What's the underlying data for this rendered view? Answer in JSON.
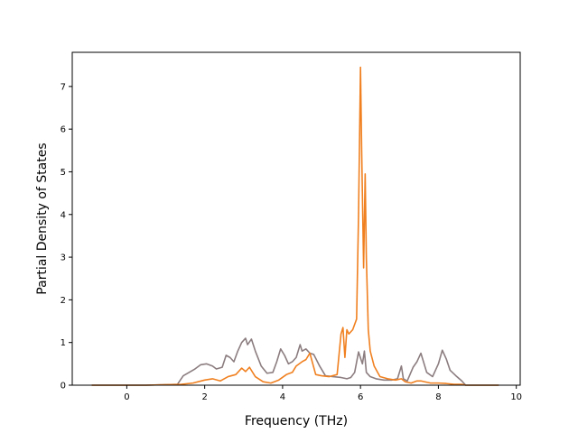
{
  "chart_data": {
    "type": "line",
    "title": "",
    "xlabel": "Frequency (THz)",
    "ylabel": "Partial Density of States",
    "xlim": [
      -1.4,
      10.1
    ],
    "ylim": [
      0,
      7.8
    ],
    "xticks": [
      0,
      2,
      4,
      6,
      8,
      10
    ],
    "yticks": [
      0,
      1,
      2,
      3,
      4,
      5,
      6,
      7
    ],
    "grid": false,
    "legend": "none",
    "series": [
      {
        "color": "#8c7d80",
        "x": [
          -0.9,
          0.5,
          1.3,
          1.45,
          1.6,
          1.75,
          1.9,
          2.05,
          2.2,
          2.3,
          2.45,
          2.55,
          2.65,
          2.75,
          2.85,
          2.95,
          3.05,
          3.1,
          3.2,
          3.3,
          3.45,
          3.6,
          3.75,
          3.85,
          3.95,
          4.05,
          4.15,
          4.25,
          4.35,
          4.45,
          4.5,
          4.6,
          4.7,
          4.8,
          4.95,
          5.1,
          5.3,
          5.5,
          5.65,
          5.75,
          5.85,
          5.95,
          6.05,
          6.1,
          6.15,
          6.25,
          6.4,
          6.6,
          6.8,
          6.95,
          7.05,
          7.1,
          7.2,
          7.35,
          7.45,
          7.55,
          7.7,
          7.85,
          8.0,
          8.1,
          8.2,
          8.3,
          8.45,
          8.6,
          8.7,
          9.55
        ],
        "values": [
          0.0,
          0.0,
          0.02,
          0.22,
          0.3,
          0.38,
          0.48,
          0.5,
          0.45,
          0.38,
          0.42,
          0.7,
          0.65,
          0.55,
          0.8,
          1.0,
          1.1,
          0.95,
          1.08,
          0.8,
          0.45,
          0.28,
          0.3,
          0.55,
          0.85,
          0.7,
          0.5,
          0.55,
          0.65,
          0.95,
          0.8,
          0.85,
          0.75,
          0.72,
          0.45,
          0.22,
          0.2,
          0.18,
          0.15,
          0.18,
          0.3,
          0.78,
          0.5,
          0.8,
          0.3,
          0.2,
          0.15,
          0.12,
          0.12,
          0.15,
          0.45,
          0.15,
          0.1,
          0.42,
          0.55,
          0.75,
          0.3,
          0.2,
          0.5,
          0.82,
          0.62,
          0.35,
          0.22,
          0.1,
          0.0,
          0.0
        ]
      },
      {
        "color": "#f08020",
        "x": [
          -0.9,
          0.5,
          1.4,
          1.7,
          2.0,
          2.2,
          2.4,
          2.6,
          2.8,
          2.95,
          3.05,
          3.15,
          3.3,
          3.5,
          3.7,
          3.9,
          4.1,
          4.25,
          4.35,
          4.5,
          4.6,
          4.7,
          4.85,
          5.0,
          5.2,
          5.4,
          5.5,
          5.55,
          5.6,
          5.65,
          5.7,
          5.8,
          5.9,
          5.95,
          6.0,
          6.03,
          6.08,
          6.12,
          6.15,
          6.2,
          6.25,
          6.35,
          6.5,
          6.7,
          6.9,
          7.05,
          7.15,
          7.3,
          7.45,
          7.55,
          7.65,
          7.8,
          8.0,
          8.2,
          8.4,
          8.6,
          8.7,
          9.55
        ],
        "values": [
          0.0,
          0.0,
          0.02,
          0.05,
          0.12,
          0.15,
          0.1,
          0.2,
          0.25,
          0.4,
          0.32,
          0.42,
          0.2,
          0.08,
          0.05,
          0.12,
          0.25,
          0.3,
          0.45,
          0.55,
          0.6,
          0.75,
          0.25,
          0.22,
          0.2,
          0.25,
          1.2,
          1.35,
          0.65,
          1.3,
          1.2,
          1.3,
          1.55,
          4.0,
          7.45,
          5.5,
          2.75,
          4.95,
          3.0,
          1.3,
          0.8,
          0.45,
          0.2,
          0.15,
          0.12,
          0.15,
          0.08,
          0.05,
          0.1,
          0.1,
          0.08,
          0.05,
          0.05,
          0.04,
          0.02,
          0.02,
          0.0,
          0.0
        ]
      }
    ]
  }
}
